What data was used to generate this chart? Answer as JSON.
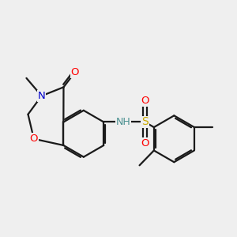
{
  "bg_color": "#efefef",
  "bond_color": "#1a1a1a",
  "line_width": 1.6,
  "atom_colors": {
    "O": "#ff0000",
    "N": "#0000cc",
    "S": "#ccaa00",
    "NH": "#4a9090",
    "H": "#4a9090",
    "C": "#1a1a1a"
  },
  "font_size": 9.5
}
